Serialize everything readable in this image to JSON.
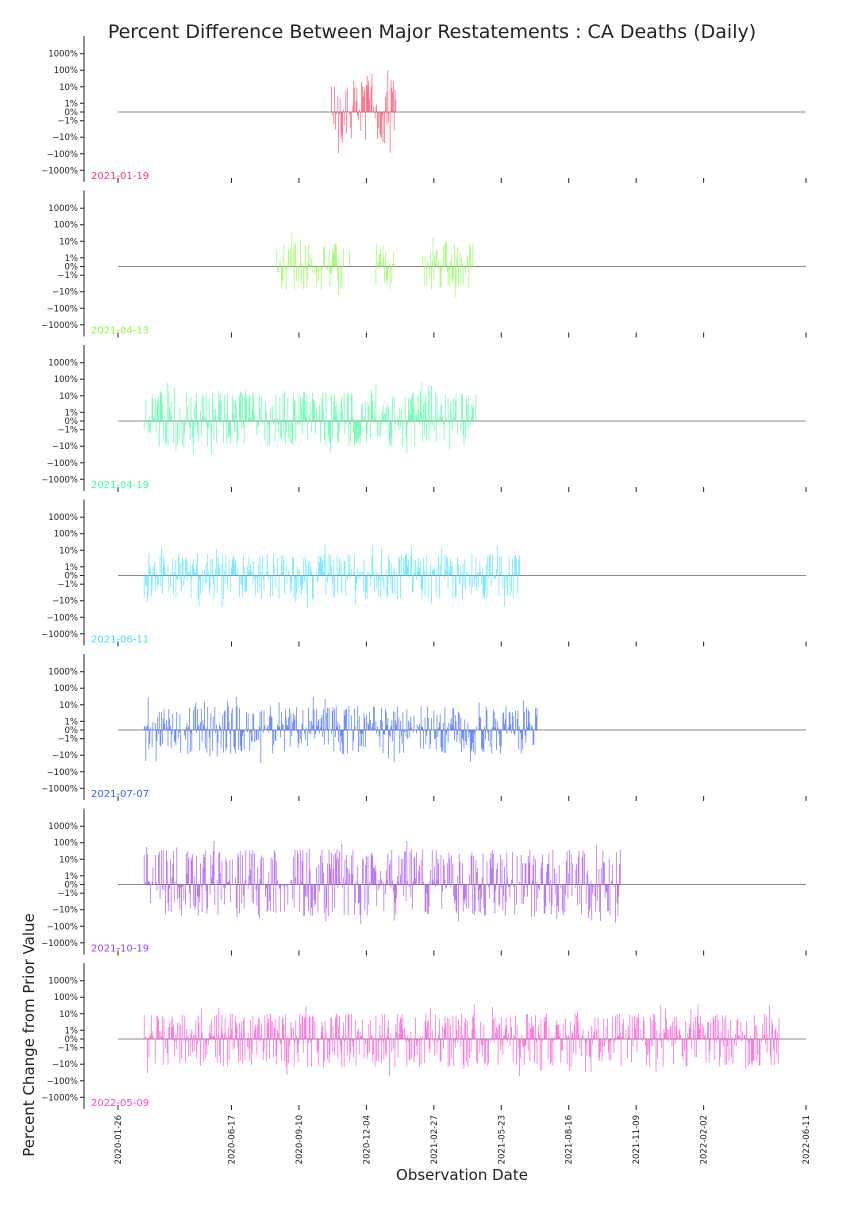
{
  "chart_data": {
    "type": "bar",
    "title": "Percent Difference Between Major Restatements : CA Deaths (Daily)",
    "xlabel": "Observation Date",
    "ylabel": "Percent Change from Prior Value",
    "yscale": "symlog",
    "y_ticks": [
      "1000%",
      "100%",
      "10%",
      "1%",
      "0%",
      "−1%",
      "−10%",
      "−100%",
      "−1000%"
    ],
    "y_tick_values": [
      1000,
      100,
      10,
      1,
      0,
      -1,
      -10,
      -100,
      -1000
    ],
    "ylim": [
      -1000,
      1000
    ],
    "x_ticks": [
      "2020-01-26",
      "2020-06-17",
      "2020-09-10",
      "2020-12-04",
      "2021-02-27",
      "2021-05-23",
      "2021-08-16",
      "2021-11-09",
      "2022-02-02",
      "2022-06-11"
    ],
    "xlim": [
      "2020-01-26",
      "2022-06-11"
    ],
    "panels": [
      {
        "name": "2021-01-19",
        "color": "#ff3b5c",
        "range": [
          "2020-10-21",
          "2021-01-10"
        ],
        "pos_amp": 25,
        "neg_amp": 25,
        "seed": 11
      },
      {
        "name": "2021-04-13",
        "color": "#80ff40",
        "range": [
          "2020-08-13",
          "2021-04-17"
        ],
        "pos_amp": 8,
        "neg_amp": 8,
        "seed": 23,
        "gaps": [
          [
            "2020-11-07",
            "2020-12-15"
          ],
          [
            "2021-01-11",
            "2021-02-14"
          ]
        ]
      },
      {
        "name": "2021-04-19",
        "color": "#3dff9a",
        "range": [
          "2020-02-28",
          "2021-04-21"
        ],
        "pos_amp": 20,
        "neg_amp": 10,
        "seed": 37
      },
      {
        "name": "2021-06-11",
        "color": "#40e0ff",
        "range": [
          "2020-02-28",
          "2021-06-15"
        ],
        "pos_amp": 6,
        "neg_amp": 8,
        "seed": 41
      },
      {
        "name": "2021-07-07",
        "color": "#3060ff",
        "range": [
          "2020-02-28",
          "2021-07-07"
        ],
        "pos_amp": 8,
        "neg_amp": 8,
        "seed": 53
      },
      {
        "name": "2021-10-19",
        "color": "#a040f0",
        "range": [
          "2020-02-28",
          "2021-10-20"
        ],
        "pos_amp": 40,
        "neg_amp": 25,
        "seed": 67
      },
      {
        "name": "2022-05-09",
        "color": "#ff40d0",
        "range": [
          "2020-02-28",
          "2022-05-09"
        ],
        "pos_amp": 10,
        "neg_amp": 15,
        "seed": 79
      }
    ]
  }
}
